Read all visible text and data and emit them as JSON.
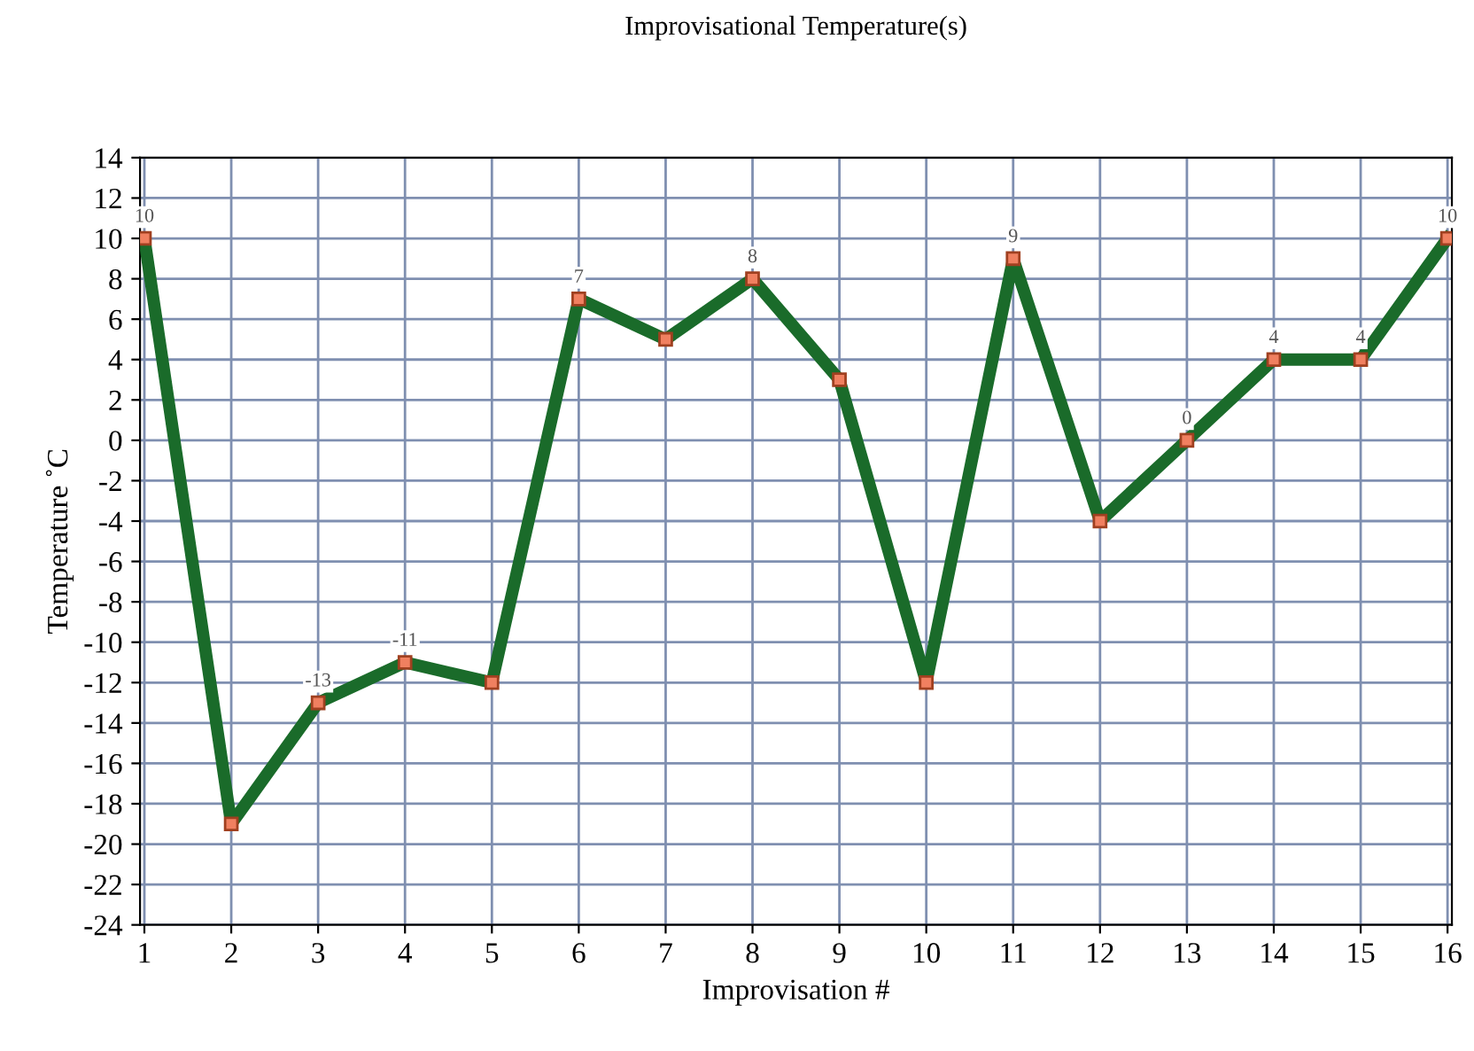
{
  "chart_data": {
    "type": "line",
    "title": "Improvisational Temperature(s)",
    "xlabel": "Improvisation #",
    "ylabel": "Temperature ˚C",
    "categories": [
      "1",
      "2",
      "3",
      "4",
      "5",
      "6",
      "7",
      "8",
      "9",
      "10",
      "11",
      "12",
      "13",
      "14",
      "15",
      "16"
    ],
    "series": [
      {
        "color": "#1a6b2a",
        "values": [
          10,
          -19,
          -13,
          -11,
          -12,
          7,
          5,
          8,
          3,
          -12,
          9,
          -4,
          0,
          4,
          4,
          10
        ],
        "value_labels": [
          "10",
          null,
          "-13",
          "-11",
          null,
          "7",
          null,
          "8",
          null,
          null,
          "9",
          null,
          "0",
          "4",
          "4",
          "10"
        ]
      }
    ],
    "ylim": [
      -24,
      14
    ],
    "yticks": [
      -24,
      -22,
      -20,
      -18,
      -16,
      -14,
      -12,
      -10,
      -8,
      -6,
      -4,
      -2,
      0,
      2,
      4,
      6,
      8,
      10,
      12,
      14
    ],
    "grid": true,
    "marker": "square",
    "line_style": "solid"
  }
}
